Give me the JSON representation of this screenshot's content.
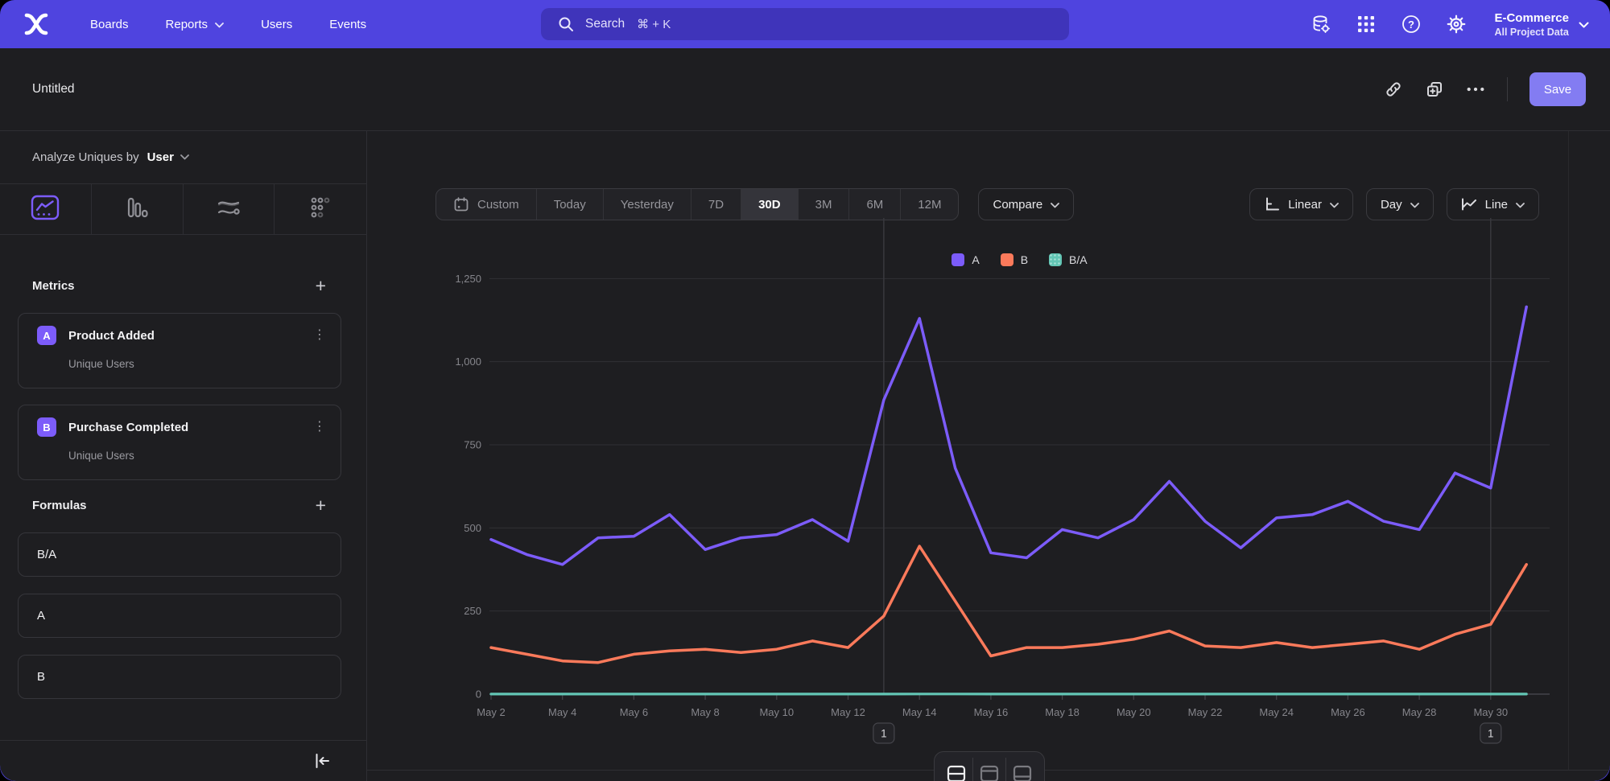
{
  "nav": {
    "items": [
      {
        "label": "Boards",
        "has_dropdown": false
      },
      {
        "label": "Reports",
        "has_dropdown": true
      },
      {
        "label": "Users",
        "has_dropdown": false
      },
      {
        "label": "Events",
        "has_dropdown": false
      }
    ],
    "search_placeholder": "Search",
    "search_shortcut": "⌘ + K",
    "project_name": "E-Commerce",
    "project_scope": "All Project Data"
  },
  "header": {
    "title": "Untitled",
    "save_label": "Save"
  },
  "sidebar": {
    "analyze_prefix": "Analyze Uniques by",
    "analyze_value": "User",
    "metrics_title": "Metrics",
    "metrics": [
      {
        "letter": "A",
        "name": "Product Added",
        "detail": "Unique Users"
      },
      {
        "letter": "B",
        "name": "Purchase Completed",
        "detail": "Unique Users"
      }
    ],
    "formulas_title": "Formulas",
    "formulas": [
      "B/A",
      "A",
      "B"
    ]
  },
  "controls": {
    "date_ranges": [
      "Custom",
      "Today",
      "Yesterday",
      "7D",
      "30D",
      "3M",
      "6M",
      "12M"
    ],
    "selected_range": "30D",
    "compare_label": "Compare",
    "scale_label": "Linear",
    "interval_label": "Day",
    "chart_type_label": "Line"
  },
  "annotations": [
    {
      "label": "1",
      "date": "May 13"
    },
    {
      "label": "1",
      "date": "May 30"
    }
  ],
  "colors": {
    "brand_purple": "#4F44DF",
    "accent_purple": "#7C5CFA",
    "series_a": "#7C5CFA",
    "series_b": "#FB7A5B",
    "series_ba": "#63C6B5",
    "save_button": "#837CF2",
    "background_dark": "#1E1E21"
  },
  "chart_data": {
    "type": "line",
    "title": "",
    "xlabel": "",
    "ylabel": "",
    "x": [
      "May 2",
      "May 3",
      "May 4",
      "May 5",
      "May 6",
      "May 7",
      "May 8",
      "May 9",
      "May 10",
      "May 11",
      "May 12",
      "May 13",
      "May 14",
      "May 15",
      "May 16",
      "May 17",
      "May 18",
      "May 19",
      "May 20",
      "May 21",
      "May 22",
      "May 23",
      "May 24",
      "May 25",
      "May 26",
      "May 27",
      "May 28",
      "May 29",
      "May 30",
      "May 31"
    ],
    "series": [
      {
        "name": "A",
        "color": "#7C5CFA",
        "values": [
          465,
          420,
          390,
          470,
          475,
          540,
          435,
          470,
          480,
          525,
          460,
          885,
          1130,
          680,
          425,
          410,
          495,
          470,
          525,
          640,
          520,
          440,
          530,
          540,
          580,
          520,
          495,
          665,
          620,
          1165
        ]
      },
      {
        "name": "B",
        "color": "#FB7A5B",
        "values": [
          140,
          120,
          100,
          95,
          120,
          130,
          135,
          125,
          135,
          160,
          140,
          235,
          445,
          280,
          115,
          140,
          140,
          150,
          165,
          190,
          145,
          140,
          155,
          140,
          150,
          160,
          135,
          180,
          210,
          390
        ]
      },
      {
        "name": "B/A",
        "color": "#63C6B5",
        "values": [
          0.3,
          0.29,
          0.26,
          0.2,
          0.25,
          0.24,
          0.31,
          0.27,
          0.28,
          0.3,
          0.3,
          0.27,
          0.39,
          0.41,
          0.27,
          0.34,
          0.28,
          0.32,
          0.31,
          0.3,
          0.28,
          0.32,
          0.29,
          0.26,
          0.26,
          0.31,
          0.27,
          0.27,
          0.34,
          0.33
        ]
      }
    ],
    "ylim": [
      0,
      1250
    ],
    "yticks": [
      0,
      250,
      500,
      750,
      1000,
      1250
    ],
    "ytick_labels": [
      "0",
      "250",
      "500",
      "750",
      "1,000",
      "1,250"
    ],
    "xtick_labels": [
      "May 2",
      "May 4",
      "May 6",
      "May 8",
      "May 10",
      "May 12",
      "May 14",
      "May 16",
      "May 18",
      "May 20",
      "May 22",
      "May 24",
      "May 26",
      "May 28",
      "May 30"
    ],
    "grid": "horizontal",
    "legend_position": "top-center"
  }
}
